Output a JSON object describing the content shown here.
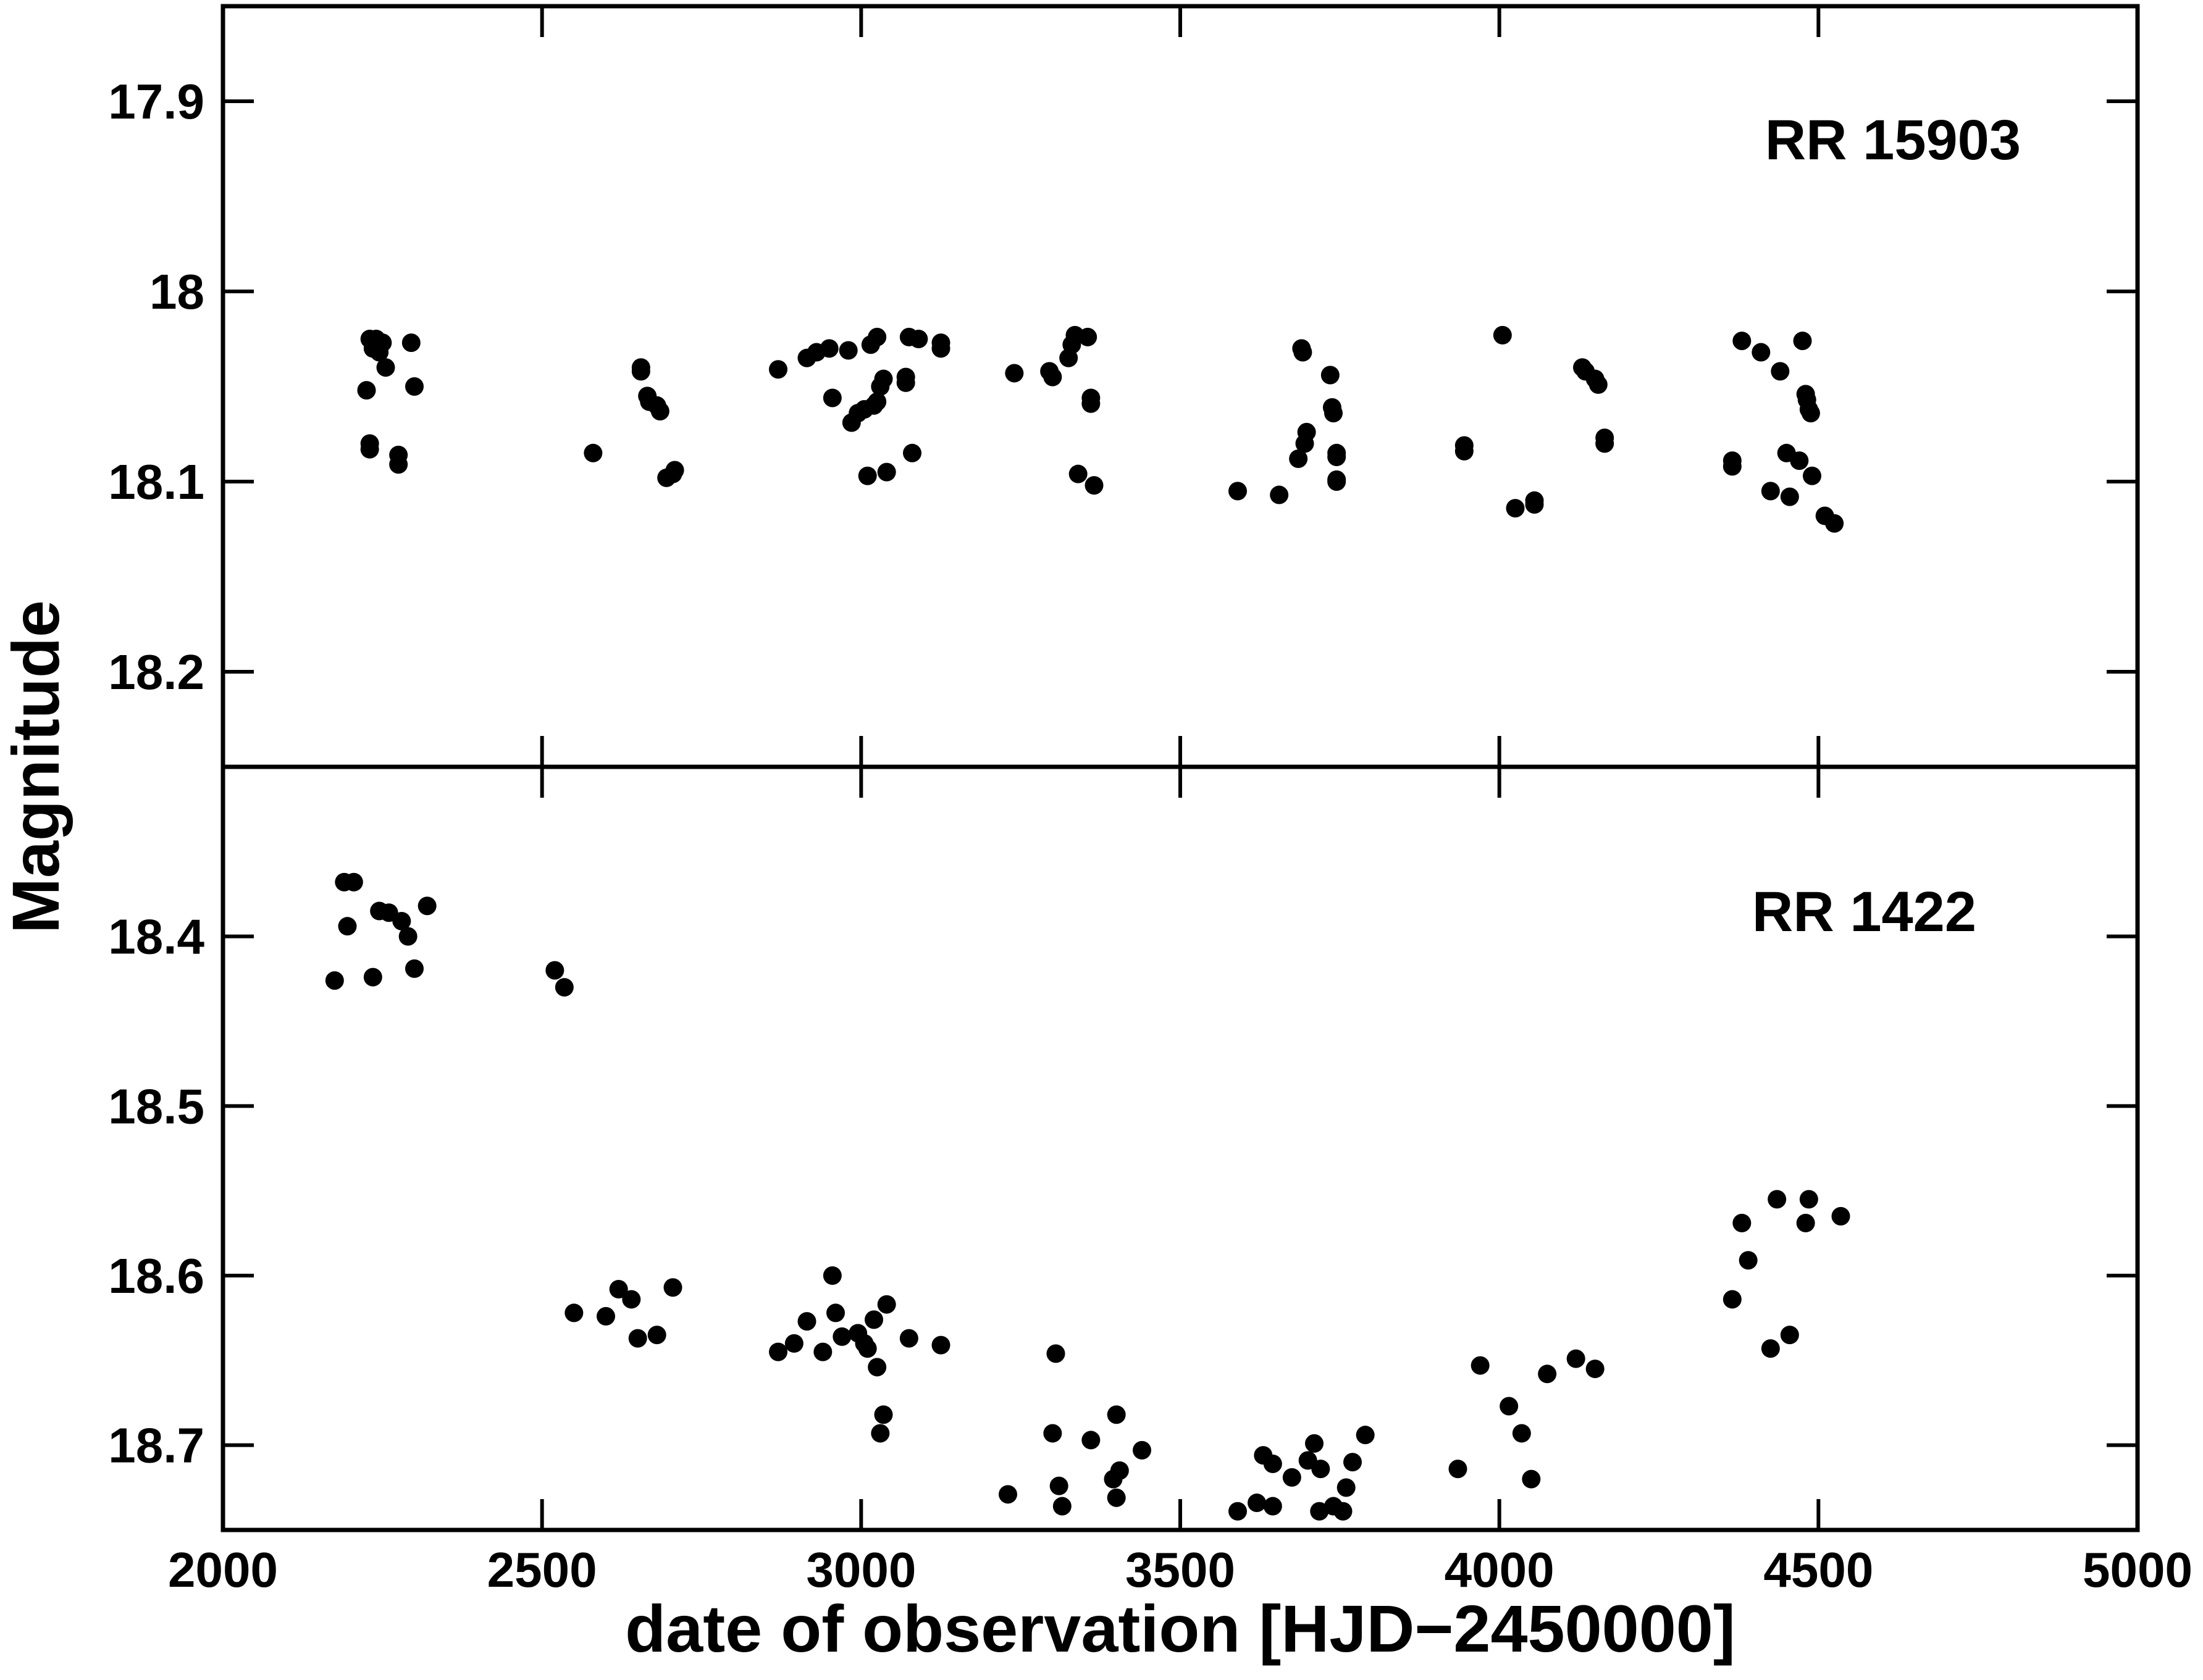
{
  "chart_data": {
    "type": "scatter",
    "xlabel": "date of observation [HJD−2450000]",
    "ylabel": "Magnitude",
    "xlim": [
      2000,
      5000
    ],
    "xticks": [
      "2000",
      "2500",
      "3000",
      "3500",
      "4000",
      "4500",
      "5000"
    ],
    "marker_color": "#000000",
    "panels": [
      {
        "label": "RR 15903",
        "ylim": [
          17.85,
          18.25
        ],
        "yticks": [
          "17.9",
          "18",
          "18.1",
          "18.2"
        ],
        "points": [
          [
            2225,
            18.052
          ],
          [
            2230,
            18.025
          ],
          [
            2235,
            18.03
          ],
          [
            2240,
            18.025
          ],
          [
            2245,
            18.032
          ],
          [
            2250,
            18.027
          ],
          [
            2255,
            18.04
          ],
          [
            2230,
            18.08
          ],
          [
            2230,
            18.083
          ],
          [
            2275,
            18.086
          ],
          [
            2275,
            18.091
          ],
          [
            2295,
            18.027
          ],
          [
            2300,
            18.05
          ],
          [
            2580,
            18.085
          ],
          [
            2655,
            18.04
          ],
          [
            2655,
            18.042
          ],
          [
            2665,
            18.055
          ],
          [
            2668,
            18.058
          ],
          [
            2680,
            18.06
          ],
          [
            2685,
            18.063
          ],
          [
            2695,
            18.098
          ],
          [
            2705,
            18.096
          ],
          [
            2708,
            18.094
          ],
          [
            2870,
            18.041
          ],
          [
            2915,
            18.035
          ],
          [
            2930,
            18.032
          ],
          [
            2950,
            18.03
          ],
          [
            2955,
            18.056
          ],
          [
            2980,
            18.031
          ],
          [
            2985,
            18.069
          ],
          [
            2995,
            18.064
          ],
          [
            3005,
            18.062
          ],
          [
            3010,
            18.097
          ],
          [
            3015,
            18.028
          ],
          [
            3020,
            18.06
          ],
          [
            3025,
            18.058
          ],
          [
            3025,
            18.024
          ],
          [
            3030,
            18.05
          ],
          [
            3035,
            18.046
          ],
          [
            3040,
            18.095
          ],
          [
            3070,
            18.048
          ],
          [
            3070,
            18.045
          ],
          [
            3075,
            18.024
          ],
          [
            3080,
            18.085
          ],
          [
            3090,
            18.025
          ],
          [
            3125,
            18.027
          ],
          [
            3125,
            18.03
          ],
          [
            3240,
            18.043
          ],
          [
            3295,
            18.042
          ],
          [
            3300,
            18.045
          ],
          [
            3325,
            18.035
          ],
          [
            3330,
            18.028
          ],
          [
            3335,
            18.023
          ],
          [
            3340,
            18.096
          ],
          [
            3355,
            18.024
          ],
          [
            3360,
            18.056
          ],
          [
            3360,
            18.059
          ],
          [
            3365,
            18.102
          ],
          [
            3590,
            18.105
          ],
          [
            3655,
            18.107
          ],
          [
            3685,
            18.088
          ],
          [
            3690,
            18.03
          ],
          [
            3692,
            18.032
          ],
          [
            3695,
            18.08
          ],
          [
            3698,
            18.074
          ],
          [
            3735,
            18.044
          ],
          [
            3738,
            18.061
          ],
          [
            3740,
            18.064
          ],
          [
            3745,
            18.085
          ],
          [
            3745,
            18.087
          ],
          [
            3745,
            18.099
          ],
          [
            3745,
            18.1
          ],
          [
            3945,
            18.081
          ],
          [
            3945,
            18.084
          ],
          [
            4005,
            18.023
          ],
          [
            4025,
            18.114
          ],
          [
            4055,
            18.11
          ],
          [
            4055,
            18.112
          ],
          [
            4130,
            18.04
          ],
          [
            4135,
            18.042
          ],
          [
            4150,
            18.046
          ],
          [
            4155,
            18.049
          ],
          [
            4165,
            18.077
          ],
          [
            4165,
            18.08
          ],
          [
            4365,
            18.089
          ],
          [
            4365,
            18.092
          ],
          [
            4380,
            18.026
          ],
          [
            4410,
            18.032
          ],
          [
            4425,
            18.105
          ],
          [
            4440,
            18.042
          ],
          [
            4450,
            18.085
          ],
          [
            4455,
            18.108
          ],
          [
            4470,
            18.089
          ],
          [
            4475,
            18.026
          ],
          [
            4480,
            18.054
          ],
          [
            4482,
            18.057
          ],
          [
            4485,
            18.062
          ],
          [
            4488,
            18.064
          ],
          [
            4490,
            18.097
          ],
          [
            4510,
            18.118
          ],
          [
            4525,
            18.122
          ]
        ]
      },
      {
        "label": "RR 1422",
        "ylim": [
          18.3,
          18.75
        ],
        "yticks": [
          "18.4",
          "18.5",
          "18.6",
          "18.7"
        ],
        "points": [
          [
            2175,
            18.426
          ],
          [
            2190,
            18.368
          ],
          [
            2195,
            18.394
          ],
          [
            2205,
            18.368
          ],
          [
            2235,
            18.424
          ],
          [
            2245,
            18.385
          ],
          [
            2260,
            18.386
          ],
          [
            2280,
            18.391
          ],
          [
            2290,
            18.4
          ],
          [
            2300,
            18.419
          ],
          [
            2320,
            18.382
          ],
          [
            2520,
            18.42
          ],
          [
            2535,
            18.43
          ],
          [
            2550,
            18.622
          ],
          [
            2600,
            18.624
          ],
          [
            2620,
            18.608
          ],
          [
            2640,
            18.614
          ],
          [
            2650,
            18.637
          ],
          [
            2680,
            18.635
          ],
          [
            2705,
            18.607
          ],
          [
            2870,
            18.645
          ],
          [
            2895,
            18.64
          ],
          [
            2915,
            18.627
          ],
          [
            2940,
            18.645
          ],
          [
            2955,
            18.6
          ],
          [
            2960,
            18.622
          ],
          [
            2970,
            18.636
          ],
          [
            2995,
            18.634
          ],
          [
            3005,
            18.64
          ],
          [
            3010,
            18.643
          ],
          [
            3020,
            18.626
          ],
          [
            3025,
            18.654
          ],
          [
            3030,
            18.693
          ],
          [
            3035,
            18.682
          ],
          [
            3040,
            18.617
          ],
          [
            3075,
            18.637
          ],
          [
            3125,
            18.641
          ],
          [
            3230,
            18.729
          ],
          [
            3300,
            18.693
          ],
          [
            3305,
            18.646
          ],
          [
            3310,
            18.724
          ],
          [
            3315,
            18.736
          ],
          [
            3360,
            18.697
          ],
          [
            3395,
            18.72
          ],
          [
            3400,
            18.682
          ],
          [
            3400,
            18.731
          ],
          [
            3405,
            18.715
          ],
          [
            3440,
            18.703
          ],
          [
            3590,
            18.739
          ],
          [
            3620,
            18.734
          ],
          [
            3630,
            18.706
          ],
          [
            3645,
            18.711
          ],
          [
            3645,
            18.736
          ],
          [
            3675,
            18.719
          ],
          [
            3700,
            18.709
          ],
          [
            3710,
            18.699
          ],
          [
            3718,
            18.739
          ],
          [
            3720,
            18.714
          ],
          [
            3740,
            18.736
          ],
          [
            3755,
            18.739
          ],
          [
            3760,
            18.725
          ],
          [
            3770,
            18.71
          ],
          [
            3790,
            18.694
          ],
          [
            3935,
            18.714
          ],
          [
            3970,
            18.653
          ],
          [
            4015,
            18.677
          ],
          [
            4035,
            18.693
          ],
          [
            4050,
            18.72
          ],
          [
            4075,
            18.658
          ],
          [
            4120,
            18.649
          ],
          [
            4150,
            18.655
          ],
          [
            4365,
            18.614
          ],
          [
            4380,
            18.569
          ],
          [
            4390,
            18.591
          ],
          [
            4425,
            18.643
          ],
          [
            4435,
            18.555
          ],
          [
            4455,
            18.635
          ],
          [
            4480,
            18.569
          ],
          [
            4485,
            18.555
          ],
          [
            4535,
            18.565
          ]
        ]
      }
    ]
  }
}
